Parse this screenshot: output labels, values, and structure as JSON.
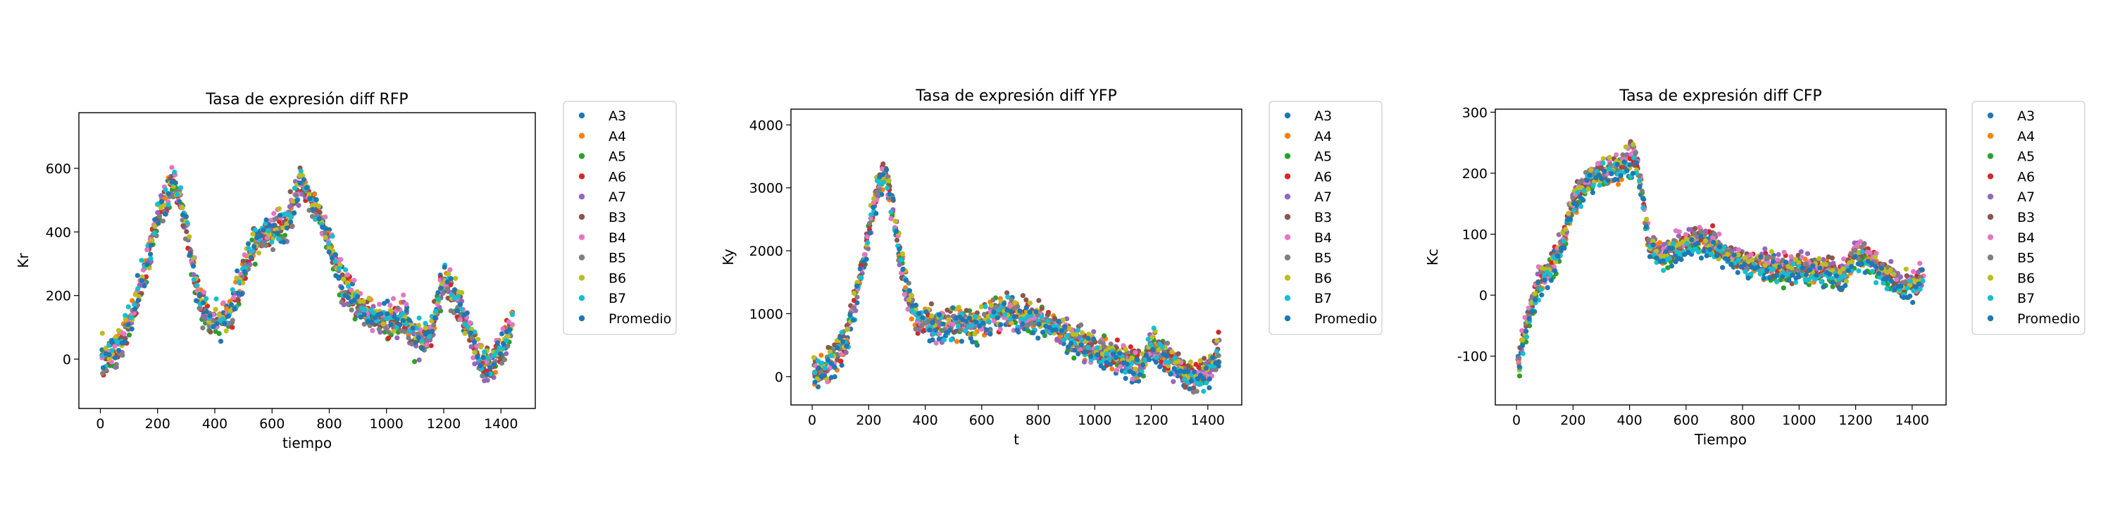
{
  "legend_labels": [
    "A3",
    "A4",
    "A5",
    "A6",
    "A7",
    "B3",
    "B4",
    "B5",
    "B6",
    "B7",
    "Promedio"
  ],
  "series_colors": [
    "#1f77b4",
    "#ff7f0e",
    "#2ca02c",
    "#d62728",
    "#9467bd",
    "#8c564b",
    "#e377c2",
    "#7f7f7f",
    "#bcbd22",
    "#17becf",
    "#1f77b4"
  ],
  "chart_data": [
    {
      "type": "scatter",
      "title": "Tasa de expresión diff RFP",
      "xlabel": "tiempo",
      "ylabel": "Kr",
      "xlim": [
        -75,
        1520
      ],
      "ylim": [
        -155,
        775
      ],
      "xticks": [
        0,
        200,
        400,
        600,
        800,
        1000,
        1200,
        1400
      ],
      "yticks": [
        0,
        200,
        400,
        600
      ],
      "legend": "outside-right-top",
      "trend_points": [
        [
          10,
          0
        ],
        [
          60,
          30
        ],
        [
          120,
          150
        ],
        [
          200,
          450
        ],
        [
          260,
          560
        ],
        [
          300,
          420
        ],
        [
          340,
          200
        ],
        [
          380,
          120
        ],
        [
          420,
          110
        ],
        [
          460,
          150
        ],
        [
          520,
          330
        ],
        [
          580,
          400
        ],
        [
          650,
          420
        ],
        [
          700,
          560
        ],
        [
          740,
          500
        ],
        [
          800,
          360
        ],
        [
          850,
          230
        ],
        [
          900,
          170
        ],
        [
          960,
          130
        ],
        [
          1000,
          110
        ],
        [
          1060,
          140
        ],
        [
          1100,
          60
        ],
        [
          1150,
          60
        ],
        [
          1200,
          250
        ],
        [
          1250,
          180
        ],
        [
          1300,
          50
        ],
        [
          1350,
          -30
        ],
        [
          1400,
          20
        ],
        [
          1440,
          120
        ]
      ],
      "noise": 55,
      "step": 10
    },
    {
      "type": "scatter",
      "title": "Tasa de expresión diff YFP",
      "xlabel": "t",
      "ylabel": "Ky",
      "xlim": [
        -75,
        1520
      ],
      "ylim": [
        -450,
        4250
      ],
      "xticks": [
        0,
        200,
        400,
        600,
        800,
        1000,
        1200,
        1400
      ],
      "yticks": [
        0,
        1000,
        2000,
        3000,
        4000
      ],
      "legend": "outside-right-top",
      "trend_points": [
        [
          10,
          100
        ],
        [
          60,
          200
        ],
        [
          120,
          600
        ],
        [
          180,
          1800
        ],
        [
          230,
          3000
        ],
        [
          260,
          3300
        ],
        [
          290,
          2500
        ],
        [
          330,
          1500
        ],
        [
          370,
          950
        ],
        [
          420,
          850
        ],
        [
          500,
          850
        ],
        [
          600,
          880
        ],
        [
          680,
          1100
        ],
        [
          720,
          1000
        ],
        [
          800,
          950
        ],
        [
          880,
          750
        ],
        [
          950,
          550
        ],
        [
          1000,
          450
        ],
        [
          1060,
          350
        ],
        [
          1120,
          250
        ],
        [
          1160,
          150
        ],
        [
          1200,
          500
        ],
        [
          1240,
          400
        ],
        [
          1300,
          150
        ],
        [
          1350,
          0
        ],
        [
          1400,
          100
        ],
        [
          1440,
          500
        ]
      ],
      "noise": 260,
      "step": 10
    },
    {
      "type": "scatter",
      "title": "Tasa de expresión diff CFP",
      "xlabel": "Tiempo",
      "ylabel": "Kc",
      "xlim": [
        -75,
        1520
      ],
      "ylim": [
        -180,
        305
      ],
      "xticks": [
        0,
        200,
        400,
        600,
        800,
        1000,
        1200,
        1400
      ],
      "yticks": [
        -100,
        0,
        100,
        200,
        300
      ],
      "legend": "outside-right-top",
      "trend_points": [
        [
          10,
          -110
        ],
        [
          40,
          -40
        ],
        [
          80,
          20
        ],
        [
          120,
          40
        ],
        [
          160,
          80
        ],
        [
          200,
          150
        ],
        [
          260,
          190
        ],
        [
          320,
          200
        ],
        [
          380,
          210
        ],
        [
          420,
          230
        ],
        [
          450,
          150
        ],
        [
          470,
          80
        ],
        [
          520,
          65
        ],
        [
          580,
          80
        ],
        [
          640,
          90
        ],
        [
          700,
          80
        ],
        [
          760,
          60
        ],
        [
          820,
          50
        ],
        [
          900,
          45
        ],
        [
          980,
          40
        ],
        [
          1050,
          45
        ],
        [
          1100,
          40
        ],
        [
          1150,
          25
        ],
        [
          1200,
          70
        ],
        [
          1250,
          55
        ],
        [
          1300,
          35
        ],
        [
          1350,
          15
        ],
        [
          1400,
          15
        ],
        [
          1440,
          30
        ]
      ],
      "noise": 22,
      "step": 10
    }
  ]
}
